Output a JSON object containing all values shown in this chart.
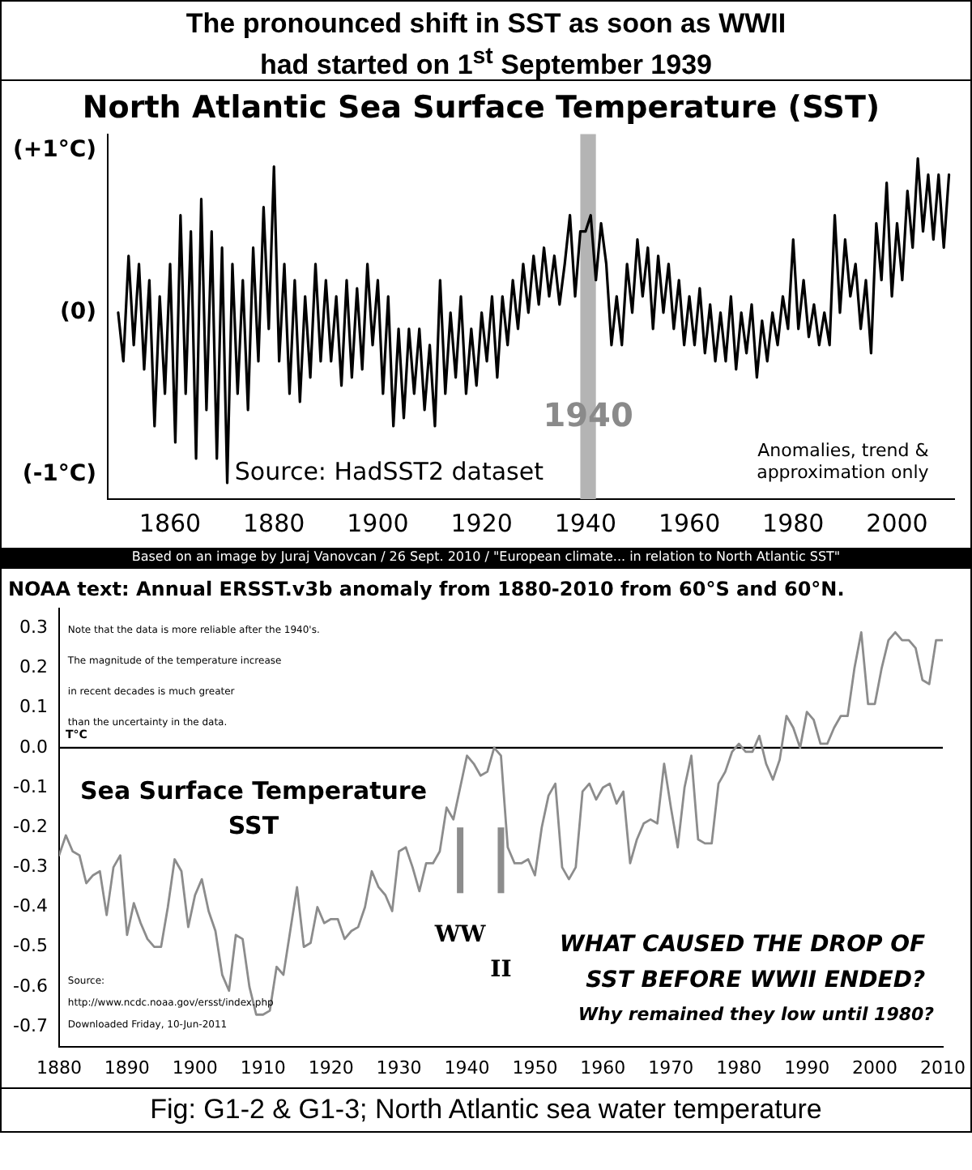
{
  "chart_data": [
    {
      "type": "line",
      "title": "The pronounced shift in SST as soon as WWII had started on 1$^{st}$ September 1939",
      "subtitle": "North Atlantic Sea Surface Temperature (SST)",
      "marker": "none",
      "grid": false,
      "x": [
        1850,
        1851,
        1852,
        1853,
        1854,
        1855,
        1856,
        1857,
        1858,
        1859,
        1860,
        1861,
        1862,
        1863,
        1864,
        1865,
        1866,
        1867,
        1868,
        1869,
        1870,
        1871,
        1872,
        1873,
        1874,
        1875,
        1876,
        1877,
        1878,
        1879,
        1880,
        1881,
        1882,
        1883,
        1884,
        1885,
        1886,
        1887,
        1888,
        1889,
        1890,
        1891,
        1892,
        1893,
        1894,
        1895,
        1896,
        1897,
        1898,
        1899,
        1900,
        1901,
        1902,
        1903,
        1904,
        1905,
        1906,
        1907,
        1908,
        1909,
        1910,
        1911,
        1912,
        1913,
        1914,
        1915,
        1916,
        1917,
        1918,
        1919,
        1920,
        1921,
        1922,
        1923,
        1924,
        1925,
        1926,
        1927,
        1928,
        1929,
        1930,
        1931,
        1932,
        1933,
        1934,
        1935,
        1936,
        1937,
        1938,
        1939,
        1940,
        1941,
        1942,
        1943,
        1944,
        1945,
        1946,
        1947,
        1948,
        1949,
        1950,
        1951,
        1952,
        1953,
        1954,
        1955,
        1956,
        1957,
        1958,
        1959,
        1960,
        1961,
        1962,
        1963,
        1964,
        1965,
        1966,
        1967,
        1968,
        1969,
        1970,
        1971,
        1972,
        1973,
        1974,
        1975,
        1976,
        1977,
        1978,
        1979,
        1980,
        1981,
        1982,
        1983,
        1984,
        1985,
        1986,
        1987,
        1988,
        1989,
        1990,
        1991,
        1992,
        1993,
        1994,
        1995,
        1996,
        1997,
        1998,
        1999,
        2000,
        2001,
        2002,
        2003,
        2004,
        2005,
        2006,
        2007,
        2008,
        2009,
        2010
      ],
      "series": [
        {
          "color": "#000000",
          "values": [
            0.0,
            -0.3,
            0.35,
            -0.2,
            0.3,
            -0.35,
            0.2,
            -0.7,
            0.1,
            -0.5,
            0.3,
            -0.8,
            0.6,
            -0.5,
            0.5,
            -0.9,
            0.7,
            -0.6,
            0.5,
            -0.9,
            0.4,
            -1.05,
            0.3,
            -0.5,
            0.2,
            -0.6,
            0.4,
            -0.3,
            0.65,
            -0.1,
            0.9,
            -0.3,
            0.3,
            -0.5,
            0.2,
            -0.55,
            0.1,
            -0.4,
            0.3,
            -0.3,
            0.2,
            -0.3,
            0.1,
            -0.45,
            0.2,
            -0.4,
            0.15,
            -0.35,
            0.3,
            -0.2,
            0.2,
            -0.5,
            0.1,
            -0.7,
            -0.1,
            -0.65,
            -0.1,
            -0.5,
            -0.1,
            -0.6,
            -0.2,
            -0.7,
            0.2,
            -0.5,
            0.0,
            -0.4,
            0.1,
            -0.5,
            -0.1,
            -0.45,
            0.0,
            -0.3,
            0.1,
            -0.4,
            0.1,
            -0.2,
            0.2,
            -0.1,
            0.3,
            0.0,
            0.35,
            0.05,
            0.4,
            0.1,
            0.35,
            0.05,
            0.3,
            0.6,
            0.1,
            0.5,
            0.5,
            0.6,
            0.2,
            0.55,
            0.3,
            -0.2,
            0.1,
            -0.2,
            0.3,
            0.0,
            0.45,
            0.1,
            0.4,
            -0.1,
            0.35,
            0.0,
            0.3,
            -0.1,
            0.2,
            -0.2,
            0.1,
            -0.2,
            0.15,
            -0.25,
            0.05,
            -0.3,
            0.0,
            -0.3,
            0.1,
            -0.35,
            0.0,
            -0.25,
            0.05,
            -0.4,
            -0.05,
            -0.3,
            0.0,
            -0.2,
            0.1,
            -0.1,
            0.45,
            -0.1,
            0.2,
            -0.15,
            0.05,
            -0.2,
            0.0,
            -0.2,
            0.6,
            0.0,
            0.45,
            0.1,
            0.3,
            -0.1,
            0.2,
            -0.25,
            0.55,
            0.2,
            0.8,
            0.1,
            0.55,
            0.2,
            0.75,
            0.4,
            0.95,
            0.5,
            0.85,
            0.45,
            0.85,
            0.4,
            0.85
          ]
        }
      ],
      "xlim": [
        1848,
        2011
      ],
      "xticks": [
        1860,
        1880,
        1900,
        1920,
        1940,
        1960,
        1980,
        2000
      ],
      "ylim": [
        -1.15,
        1.1
      ],
      "yticks": [
        {
          "value": 1,
          "label": "(+1°C)"
        },
        {
          "value": 0,
          "label": "(0)"
        },
        {
          "value": -1,
          "label": "(-1°C)"
        }
      ],
      "bands": [
        {
          "axis": "x",
          "from": 1939,
          "to": 1942,
          "label": "1940",
          "color": "#b4b4b4"
        }
      ],
      "annotations": [
        "Source: HadSST2 dataset",
        "Anomalies, trend &",
        "approximation only",
        "Based on an image by Juraj Vanovcan / 26 Sept. 2010 / \"European climate... in relation to North Atlantic SST\""
      ]
    },
    {
      "type": "line",
      "title": "NOAA text: Annual ERSST.v3b anomaly from 1880-2010 from 60°S and 60°N.",
      "ylabel": "T°C",
      "marker": "none",
      "grid": false,
      "x": [
        1880,
        1881,
        1882,
        1883,
        1884,
        1885,
        1886,
        1887,
        1888,
        1889,
        1890,
        1891,
        1892,
        1893,
        1894,
        1895,
        1896,
        1897,
        1898,
        1899,
        1900,
        1901,
        1902,
        1903,
        1904,
        1905,
        1906,
        1907,
        1908,
        1909,
        1910,
        1911,
        1912,
        1913,
        1914,
        1915,
        1916,
        1917,
        1918,
        1919,
        1920,
        1921,
        1922,
        1923,
        1924,
        1925,
        1926,
        1927,
        1928,
        1929,
        1930,
        1931,
        1932,
        1933,
        1934,
        1935,
        1936,
        1937,
        1938,
        1939,
        1940,
        1941,
        1942,
        1943,
        1944,
        1945,
        1946,
        1947,
        1948,
        1949,
        1950,
        1951,
        1952,
        1953,
        1954,
        1955,
        1956,
        1957,
        1958,
        1959,
        1960,
        1961,
        1962,
        1963,
        1964,
        1965,
        1966,
        1967,
        1968,
        1969,
        1970,
        1971,
        1972,
        1973,
        1974,
        1975,
        1976,
        1977,
        1978,
        1979,
        1980,
        1981,
        1982,
        1983,
        1984,
        1985,
        1986,
        1987,
        1988,
        1989,
        1990,
        1991,
        1992,
        1993,
        1994,
        1995,
        1996,
        1997,
        1998,
        1999,
        2000,
        2001,
        2002,
        2003,
        2004,
        2005,
        2006,
        2007,
        2008,
        2009,
        2010
      ],
      "series": [
        {
          "color": "#8c8c8c",
          "values": [
            -0.27,
            -0.22,
            -0.26,
            -0.27,
            -0.34,
            -0.32,
            -0.31,
            -0.42,
            -0.3,
            -0.27,
            -0.47,
            -0.39,
            -0.44,
            -0.48,
            -0.5,
            -0.5,
            -0.4,
            -0.28,
            -0.31,
            -0.45,
            -0.37,
            -0.33,
            -0.41,
            -0.46,
            -0.57,
            -0.61,
            -0.47,
            -0.48,
            -0.6,
            -0.67,
            -0.67,
            -0.66,
            -0.55,
            -0.57,
            -0.46,
            -0.35,
            -0.5,
            -0.49,
            -0.4,
            -0.44,
            -0.43,
            -0.43,
            -0.48,
            -0.46,
            -0.45,
            -0.4,
            -0.31,
            -0.35,
            -0.37,
            -0.41,
            -0.26,
            -0.25,
            -0.3,
            -0.36,
            -0.29,
            -0.29,
            -0.26,
            -0.15,
            -0.18,
            -0.1,
            -0.02,
            -0.04,
            -0.07,
            -0.06,
            0.0,
            -0.02,
            -0.25,
            -0.29,
            -0.29,
            -0.28,
            -0.32,
            -0.2,
            -0.12,
            -0.09,
            -0.3,
            -0.33,
            -0.3,
            -0.11,
            -0.09,
            -0.13,
            -0.1,
            -0.09,
            -0.14,
            -0.11,
            -0.29,
            -0.23,
            -0.19,
            -0.18,
            -0.19,
            -0.04,
            -0.15,
            -0.25,
            -0.1,
            -0.02,
            -0.23,
            -0.24,
            -0.24,
            -0.09,
            -0.06,
            -0.01,
            0.01,
            -0.01,
            -0.01,
            0.03,
            -0.04,
            -0.08,
            -0.03,
            0.08,
            0.05,
            0.0,
            0.09,
            0.07,
            0.01,
            0.01,
            0.05,
            0.08,
            0.08,
            0.2,
            0.29,
            0.11,
            0.11,
            0.2,
            0.27,
            0.29,
            0.27,
            0.27,
            0.25,
            0.17,
            0.16,
            0.27,
            0.27
          ]
        }
      ],
      "xlim": [
        1880,
        2010
      ],
      "xticks": [
        1880,
        1890,
        1900,
        1910,
        1920,
        1930,
        1940,
        1950,
        1960,
        1970,
        1980,
        1990,
        2000,
        2010
      ],
      "ylim": [
        -0.75,
        0.35
      ],
      "yticks": [
        {
          "value": 0.3,
          "label": "0.3"
        },
        {
          "value": 0.2,
          "label": "0.2"
        },
        {
          "value": 0.1,
          "label": "0.1"
        },
        {
          "value": 0,
          "label": "0.0"
        },
        {
          "value": -0.1,
          "label": "-0.1"
        },
        {
          "value": -0.2,
          "label": "-0.2"
        },
        {
          "value": -0.3,
          "label": "-0.3"
        },
        {
          "value": -0.4,
          "label": "-0.4"
        },
        {
          "value": -0.5,
          "label": "-0.5"
        },
        {
          "value": -0.6,
          "label": "-0.6"
        },
        {
          "value": -0.7,
          "label": "-0.7"
        }
      ],
      "ref_lines": [
        {
          "axis": "y",
          "value": 0,
          "color": "#000000"
        },
        {
          "axis": "x",
          "value": 1939,
          "label": "WW",
          "color": "#8c8c8c"
        },
        {
          "axis": "x",
          "value": 1945,
          "label": "II",
          "color": "#8c8c8c"
        }
      ],
      "annotations": [
        "Note that the data is more reliable after the 1940's.",
        "The magnitude of the temperature increase",
        "in recent decades is much greater",
        "than the uncertainty in the data.",
        "Sea Surface Temperature",
        "SST",
        "WHAT CAUSED THE DROP OF",
        "SST BEFORE WWII ENDED?",
        "Why remained they low until 1980?",
        "Source:",
        "http://www.ncdc.noaa.gov/ersst/index.php",
        "Downloaded Friday, 10-Jun-2011",
        "Fig: G1-2 & G1-3; North Atlantic sea water temperature"
      ]
    }
  ]
}
